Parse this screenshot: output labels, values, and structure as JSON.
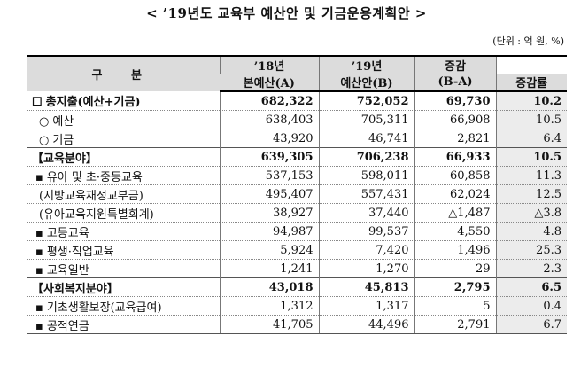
{
  "title": "< ’19년도 교육부 예산안 및 기금운용계획안 >",
  "unit": "(단위 : 억 원, %)",
  "headers": {
    "gubun": "구 분",
    "y18_top": "’18년",
    "y18_bottom": "본예산(A)",
    "y19_top": "’19년",
    "y19_bottom": "예산안(B)",
    "diff_top": "증감",
    "diff_bottom": "(B-A)",
    "rate_bottom": "증감률"
  },
  "rows": [
    {
      "mark": "☐",
      "label": "총지출(예산+기금)",
      "a": "682,322",
      "b": "752,052",
      "diff": "69,730",
      "rate": "10.2"
    },
    {
      "mark": "○",
      "label": "예산",
      "a": "638,403",
      "b": "705,311",
      "diff": "66,908",
      "rate": "10.5"
    },
    {
      "mark": "○",
      "label": "기금",
      "a": "43,920",
      "b": "46,741",
      "diff": "2,821",
      "rate": "6.4"
    },
    {
      "mark": "",
      "label": "【교육분야】",
      "a": "639,305",
      "b": "706,238",
      "diff": "66,933",
      "rate": "10.5"
    },
    {
      "mark": "▪",
      "label": "유아 및 초·중등교육",
      "a": "537,153",
      "b": "598,011",
      "diff": "60,858",
      "rate": "11.3"
    },
    {
      "mark": "",
      "label": "(지방교육재정교부금)",
      "a": "495,407",
      "b": "557,431",
      "diff": "62,024",
      "rate": "12.5"
    },
    {
      "mark": "",
      "label": "(유아교육지원특별회계)",
      "a": "38,927",
      "b": "37,440",
      "diff": "△1,487",
      "rate": "△3.8"
    },
    {
      "mark": "▪",
      "label": "고등교육",
      "a": "94,987",
      "b": "99,537",
      "diff": "4,550",
      "rate": "4.8"
    },
    {
      "mark": "▪",
      "label": "평생·직업교육",
      "a": "5,924",
      "b": "7,420",
      "diff": "1,496",
      "rate": "25.3"
    },
    {
      "mark": "▪",
      "label": "교육일반",
      "a": "1,241",
      "b": "1,270",
      "diff": "29",
      "rate": "2.3"
    },
    {
      "mark": "",
      "label": "【사회복지분야】",
      "a": "43,018",
      "b": "45,813",
      "diff": "2,795",
      "rate": "6.5"
    },
    {
      "mark": "▪",
      "label": "기초생활보장(교육급여)",
      "a": "1,312",
      "b": "1,317",
      "diff": "5",
      "rate": "0.4"
    },
    {
      "mark": "▪",
      "label": "공적연금",
      "a": "41,705",
      "b": "44,496",
      "diff": "2,791",
      "rate": "6.7"
    }
  ]
}
